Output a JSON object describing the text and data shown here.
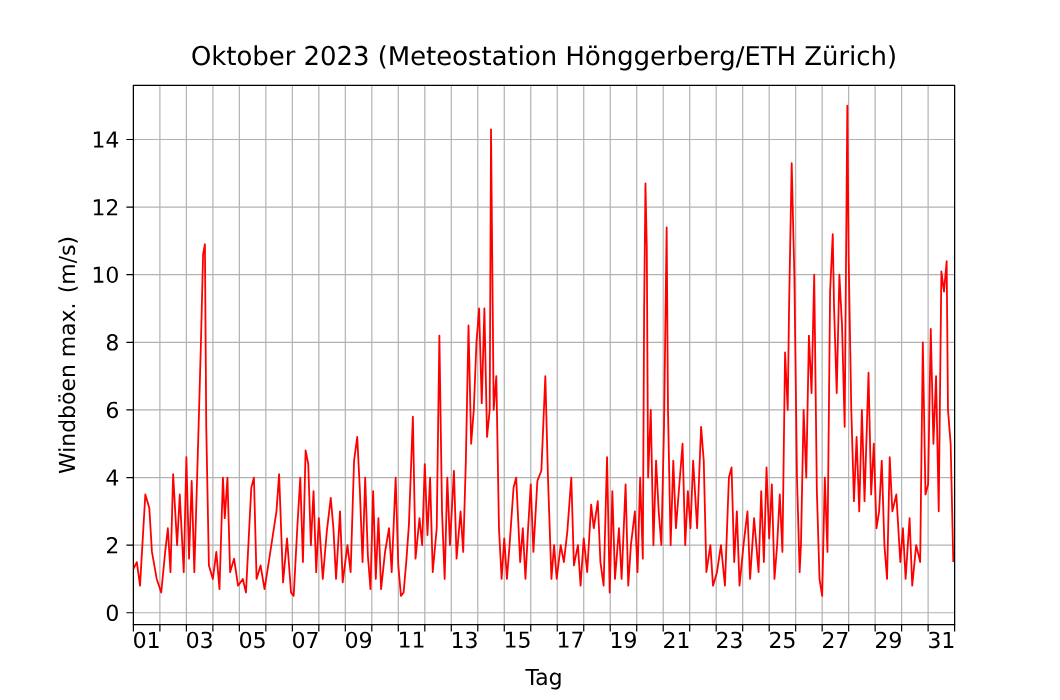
{
  "chart_data": {
    "type": "line",
    "title": "Oktober 2023  (Meteostation Hönggerberg/ETH Zürich)",
    "xlabel": "Tag",
    "ylabel": "Windböen max. (m/s)",
    "color": "#ff0000",
    "grid": true,
    "xlim": [
      0,
      31
    ],
    "ylim": [
      -0.35,
      15.6
    ],
    "xticks": [
      {
        "value": 0,
        "label": null
      },
      {
        "value": 1,
        "label": null
      },
      {
        "value": 2,
        "label": null
      },
      {
        "value": 3,
        "label": null
      },
      {
        "value": 4,
        "label": null
      },
      {
        "value": 5,
        "label": null
      },
      {
        "value": 6,
        "label": null
      },
      {
        "value": 7,
        "label": null
      },
      {
        "value": 8,
        "label": null
      },
      {
        "value": 9,
        "label": null
      },
      {
        "value": 10,
        "label": null
      },
      {
        "value": 11,
        "label": null
      },
      {
        "value": 12,
        "label": null
      },
      {
        "value": 13,
        "label": null
      },
      {
        "value": 14,
        "label": null
      },
      {
        "value": 15,
        "label": null
      },
      {
        "value": 16,
        "label": null
      },
      {
        "value": 17,
        "label": null
      },
      {
        "value": 18,
        "label": null
      },
      {
        "value": 19,
        "label": null
      },
      {
        "value": 20,
        "label": null
      },
      {
        "value": 21,
        "label": null
      },
      {
        "value": 22,
        "label": null
      },
      {
        "value": 23,
        "label": null
      },
      {
        "value": 24,
        "label": null
      },
      {
        "value": 25,
        "label": null
      },
      {
        "value": 26,
        "label": null
      },
      {
        "value": 27,
        "label": null
      },
      {
        "value": 28,
        "label": null
      },
      {
        "value": 29,
        "label": null
      },
      {
        "value": 30,
        "label": null
      },
      {
        "value": 31,
        "label": null
      },
      {
        "value": 0.5,
        "label": "01"
      },
      {
        "value": 2.5,
        "label": "03"
      },
      {
        "value": 4.5,
        "label": "05"
      },
      {
        "value": 6.5,
        "label": "07"
      },
      {
        "value": 8.5,
        "label": "09"
      },
      {
        "value": 10.5,
        "label": "11"
      },
      {
        "value": 12.5,
        "label": "13"
      },
      {
        "value": 14.5,
        "label": "15"
      },
      {
        "value": 16.5,
        "label": "17"
      },
      {
        "value": 18.5,
        "label": "19"
      },
      {
        "value": 20.5,
        "label": "21"
      },
      {
        "value": 22.5,
        "label": "23"
      },
      {
        "value": 24.5,
        "label": "25"
      },
      {
        "value": 26.5,
        "label": "27"
      },
      {
        "value": 28.5,
        "label": "29"
      },
      {
        "value": 30.5,
        "label": "31"
      }
    ],
    "yticks": [
      0,
      2,
      4,
      6,
      8,
      10,
      12,
      14
    ],
    "x": [
      0,
      0.13,
      0.25,
      0.45,
      0.6,
      0.7,
      0.88,
      1.05,
      1.2,
      1.3,
      1.4,
      1.5,
      1.65,
      1.75,
      1.9,
      2.0,
      2.1,
      2.2,
      2.3,
      2.45,
      2.55,
      2.63,
      2.7,
      2.75,
      2.85,
      3.0,
      3.13,
      3.25,
      3.38,
      3.45,
      3.55,
      3.65,
      3.8,
      3.95,
      4.13,
      4.25,
      4.45,
      4.55,
      4.65,
      4.8,
      4.95,
      5.13,
      5.4,
      5.5,
      5.65,
      5.8,
      5.95,
      6.05,
      6.2,
      6.3,
      6.4,
      6.5,
      6.6,
      6.7,
      6.8,
      6.9,
      7.0,
      7.15,
      7.3,
      7.45,
      7.55,
      7.65,
      7.8,
      7.9,
      8.08,
      8.2,
      8.33,
      8.45,
      8.55,
      8.65,
      8.75,
      8.85,
      8.95,
      9.05,
      9.15,
      9.25,
      9.35,
      9.5,
      9.65,
      9.75,
      9.9,
      10.0,
      10.1,
      10.2,
      10.3,
      10.4,
      10.55,
      10.65,
      10.8,
      10.9,
      11.0,
      11.1,
      11.2,
      11.3,
      11.45,
      11.55,
      11.65,
      11.75,
      11.85,
      11.95,
      12.1,
      12.2,
      12.35,
      12.45,
      12.55,
      12.65,
      12.75,
      12.85,
      12.95,
      13.05,
      13.15,
      13.25,
      13.35,
      13.45,
      13.5,
      13.6,
      13.7,
      13.8,
      13.9,
      14.0,
      14.1,
      14.2,
      14.35,
      14.45,
      14.6,
      14.7,
      14.8,
      14.9,
      15.0,
      15.1,
      15.25,
      15.4,
      15.55,
      15.65,
      15.78,
      15.88,
      15.98,
      16.13,
      16.25,
      16.38,
      16.53,
      16.63,
      16.78,
      16.88,
      17.0,
      17.13,
      17.28,
      17.38,
      17.53,
      17.63,
      17.75,
      17.88,
      17.98,
      18.08,
      18.18,
      18.33,
      18.43,
      18.58,
      18.68,
      18.78,
      18.93,
      19.03,
      19.13,
      19.23,
      19.28,
      19.33,
      19.38,
      19.43,
      19.53,
      19.63,
      19.73,
      19.83,
      19.93,
      20.03,
      20.13,
      20.18,
      20.28,
      20.38,
      20.48,
      20.63,
      20.73,
      20.83,
      20.93,
      21.03,
      21.13,
      21.28,
      21.43,
      21.53,
      21.63,
      21.78,
      21.88,
      22.03,
      22.18,
      22.33,
      22.48,
      22.58,
      22.68,
      22.78,
      22.88,
      23.03,
      23.18,
      23.28,
      23.43,
      23.6,
      23.7,
      23.8,
      23.9,
      24.0,
      24.1,
      24.2,
      24.3,
      24.4,
      24.5,
      24.6,
      24.7,
      24.75,
      24.85,
      24.95,
      25.05,
      25.15,
      25.2,
      25.3,
      25.4,
      25.5,
      25.6,
      25.7,
      25.8,
      25.9,
      26.0,
      26.1,
      26.2,
      26.3,
      26.4,
      26.45,
      26.55,
      26.65,
      26.75,
      26.85,
      26.95,
      27.0,
      27.1,
      27.2,
      27.3,
      27.4,
      27.5,
      27.6,
      27.75,
      27.85,
      27.95,
      28.05,
      28.15,
      28.25,
      28.35,
      28.45,
      28.55,
      28.65,
      28.8,
      28.95,
      29.05,
      29.15,
      29.3,
      29.4,
      29.55,
      29.7,
      29.8,
      29.9,
      30.0,
      30.1,
      30.2,
      30.3,
      30.4,
      30.5,
      30.6,
      30.7,
      30.75,
      30.85,
      30.95
    ],
    "values": [
      1.3,
      1.5,
      0.8,
      3.5,
      3.1,
      1.8,
      1.0,
      0.6,
      1.8,
      2.5,
      1.2,
      4.1,
      2.0,
      3.5,
      1.2,
      4.6,
      1.6,
      3.9,
      1.2,
      5.2,
      8.0,
      10.6,
      10.9,
      5.5,
      1.4,
      1.0,
      1.8,
      0.7,
      4.0,
      2.8,
      4.0,
      1.2,
      1.6,
      0.8,
      1.0,
      0.6,
      3.7,
      4.0,
      1.0,
      1.4,
      0.7,
      1.6,
      3.0,
      4.1,
      0.9,
      2.2,
      0.6,
      0.5,
      2.7,
      4.0,
      1.5,
      4.8,
      4.4,
      2.0,
      3.6,
      1.2,
      2.8,
      1.0,
      2.4,
      3.4,
      2.5,
      1.0,
      3.0,
      0.9,
      2.0,
      1.2,
      4.5,
      5.2,
      3.6,
      1.5,
      4.0,
      1.7,
      0.7,
      3.6,
      1.0,
      2.8,
      0.7,
      1.8,
      2.5,
      1.2,
      4.0,
      1.4,
      0.5,
      0.6,
      1.5,
      2.6,
      5.8,
      1.6,
      2.8,
      2.0,
      4.4,
      2.3,
      4.0,
      1.2,
      2.5,
      8.2,
      3.0,
      1.0,
      4.0,
      2.0,
      4.2,
      1.6,
      3.0,
      1.8,
      4.5,
      8.5,
      5.0,
      6.0,
      8.0,
      9.0,
      6.2,
      9.0,
      5.2,
      6.0,
      14.3,
      6.0,
      7.0,
      2.5,
      1.0,
      2.2,
      1.0,
      2.0,
      3.7,
      4.0,
      1.5,
      2.5,
      1.0,
      2.5,
      3.8,
      1.8,
      3.9,
      4.2,
      7.0,
      4.0,
      1.0,
      2.0,
      1.0,
      2.0,
      1.5,
      2.4,
      4.0,
      1.4,
      2.0,
      0.8,
      2.2,
      1.2,
      3.2,
      2.5,
      3.3,
      1.5,
      0.8,
      4.6,
      0.6,
      3.6,
      1.0,
      2.5,
      1.0,
      3.8,
      0.8,
      2.0,
      3.0,
      1.2,
      4.0,
      1.6,
      9.0,
      12.7,
      10.8,
      4.0,
      6.0,
      2.0,
      4.5,
      3.0,
      2.0,
      5.5,
      11.4,
      6.0,
      2.0,
      4.5,
      2.5,
      4.0,
      5.0,
      2.0,
      3.6,
      2.5,
      4.5,
      2.5,
      5.5,
      4.5,
      1.2,
      2.0,
      0.8,
      1.2,
      2.0,
      0.8,
      4.0,
      4.3,
      1.5,
      3.0,
      0.8,
      2.0,
      3.0,
      1.0,
      2.8,
      1.2,
      3.6,
      1.5,
      4.3,
      2.2,
      3.8,
      1.0,
      2.0,
      3.5,
      1.8,
      7.7,
      6.0,
      9.0,
      13.3,
      10.0,
      4.0,
      1.2,
      2.0,
      6.0,
      4.0,
      8.2,
      6.5,
      10.0,
      3.6,
      1.0,
      0.5,
      4.0,
      1.8,
      9.5,
      11.2,
      9.0,
      6.5,
      10.0,
      8.5,
      5.5,
      15.0,
      10.5,
      6.0,
      3.3,
      5.2,
      3.0,
      6.0,
      3.3,
      7.1,
      3.5,
      5.0,
      2.5,
      3.0,
      4.5,
      2.0,
      1.0,
      4.6,
      3.0,
      3.5,
      1.5,
      2.5,
      1.0,
      2.8,
      0.8,
      2.0,
      1.5,
      8.0,
      3.5,
      3.8,
      8.4,
      5.0,
      7.0,
      3.0,
      10.1,
      9.5,
      10.4,
      6.0,
      5.0,
      1.5
    ]
  }
}
